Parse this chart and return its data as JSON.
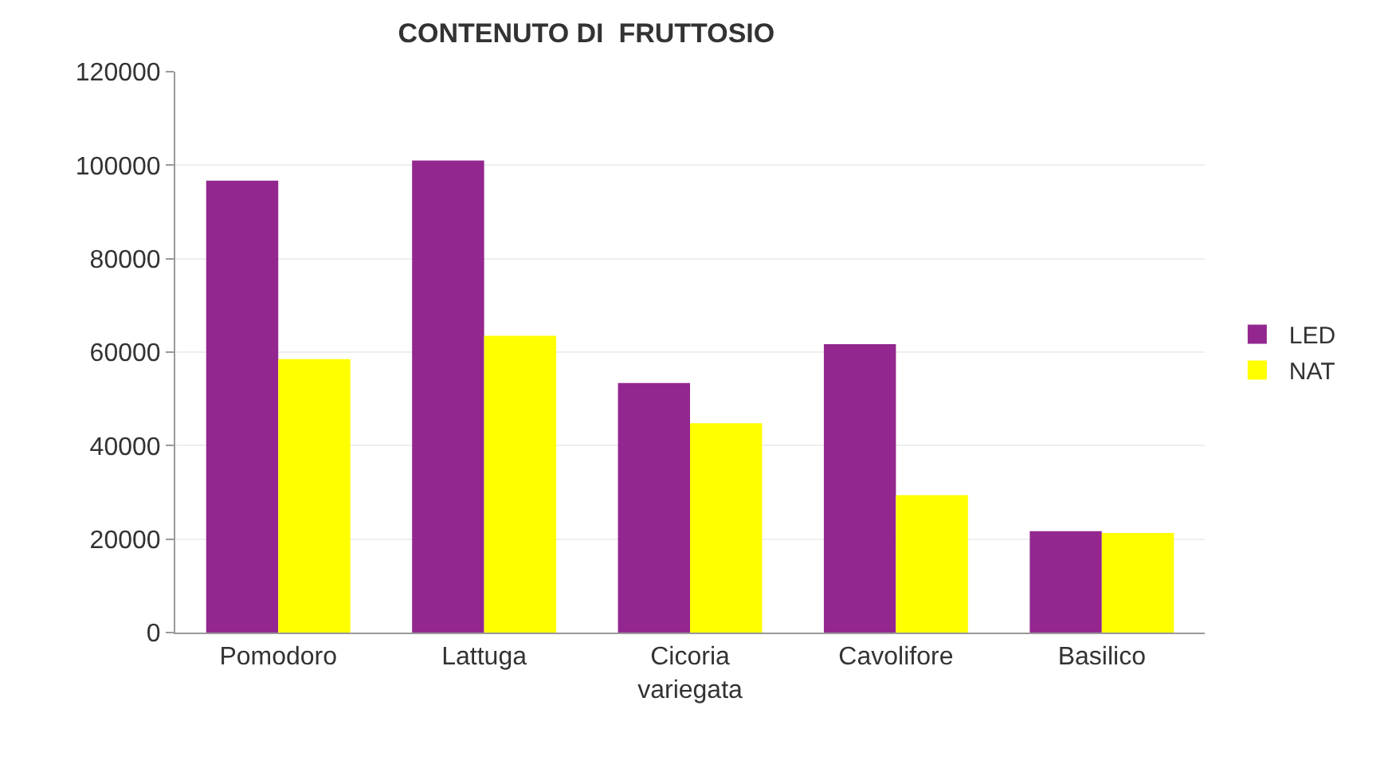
{
  "chart_data": {
    "type": "bar",
    "title": "CONTENUTO DI  FRUTTOSIO",
    "categories": [
      "Pomodoro",
      "Lattuga",
      "Cicoria variegata",
      "Cavolifore",
      "Basilico"
    ],
    "series": [
      {
        "name": "LED",
        "color": "#93278f",
        "values": [
          96700,
          101000,
          53400,
          61700,
          21700
        ]
      },
      {
        "name": "NAT",
        "color": "#ffff00",
        "values": [
          58500,
          63500,
          44800,
          29400,
          21300
        ]
      }
    ],
    "ylim": [
      0,
      120000
    ],
    "yticks": [
      0,
      20000,
      40000,
      60000,
      80000,
      100000,
      120000
    ],
    "grid": "y",
    "legend": "right"
  }
}
